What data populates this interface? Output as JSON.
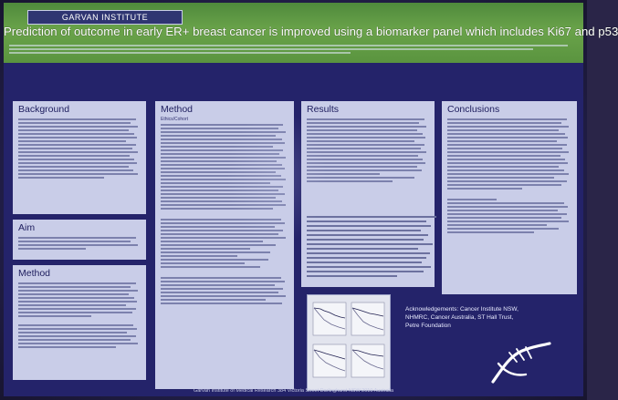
{
  "poster": {
    "institute": "GARVAN INSTITUTE",
    "title": "Prediction of outcome in early ER+ breast cancer is improved using a biomarker panel which includes Ki67 and p53",
    "sections": {
      "background": "Background",
      "aim": "Aim",
      "method_left": "Method",
      "method_mid": "Method",
      "method_mid_sub": "Ethics/Cohort",
      "results": "Results",
      "conclusions": "Conclusions"
    },
    "acknowledgements": "Acknowledgements: Cancer Institute NSW, NHMRC, Cancer Australia, ST Hall Trust, Petre Foundation",
    "footer": "Garvan Institute of Medical Research 384 Victoria Street Darlinghurst NSW 2010 Australia"
  },
  "colors": {
    "header_green": "#5a943f",
    "poster_navy": "#24236a",
    "panel_lavender": "#c9cde8"
  }
}
